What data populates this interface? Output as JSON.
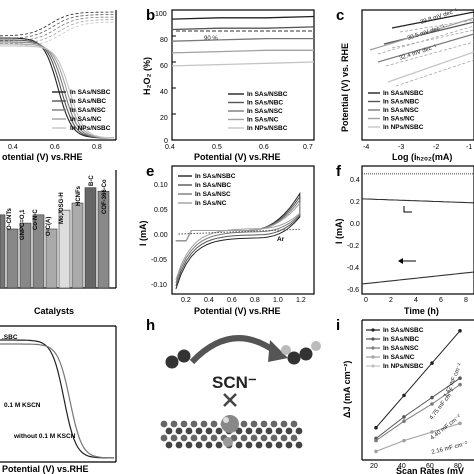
{
  "colors": {
    "dark": "#222222",
    "mid": "#555555",
    "gray": "#7a7a7a",
    "light": "#a0a0a0",
    "pale": "#c4c4c4",
    "ar": "#555555"
  },
  "panel_labels": {
    "b": "b",
    "c": "c",
    "e": "e",
    "f": "f",
    "h": "h",
    "i": "i"
  },
  "legend5": [
    "In SAs/NSBC",
    "In SAs/NBC",
    "In SAs/NSC",
    "In SAs/NC",
    "In NPs/NSBC"
  ],
  "legend4": [
    "In SAs/NSBC",
    "In SAs/NBC",
    "In SAs/NSC",
    "In SAs/NC"
  ],
  "panel_a": {
    "xlabel": "otential (V) vs.RHE",
    "xticks": [
      "0.4",
      "0.6",
      "0.8"
    ]
  },
  "panel_b": {
    "ylabel": "H₂O₂ (%)",
    "xlabel": "Potential (V) vs.RHE",
    "xticks": [
      "0.4",
      "0.5",
      "0.6",
      "0.7"
    ],
    "yticks": [
      "100",
      "80",
      "60",
      "40",
      "20",
      "0"
    ],
    "annotation": "90 %"
  },
  "panel_c": {
    "ylabel": "Potential (V) vs. RHE",
    "xlabel": "Log (iₕ₂ₒ₂(mA)",
    "xticks": [
      "-4",
      "-3",
      "-2",
      "-1"
    ],
    "slopes": [
      "39.8 mV dec⁻¹",
      "30.5 mV dec⁻¹",
      "32.4 mV dec⁻¹"
    ]
  },
  "panel_d": {
    "xlabel": "Catalysts",
    "bar_labels": [
      "O-CNTs",
      "GNPC=O,1",
      "Co-N-C",
      "O-C(A)",
      "Mo,/OSG-H",
      "HCNFs",
      "B-C",
      "COF-366-Co"
    ]
  },
  "panel_e": {
    "ylabel": "I (mA)",
    "xlabel": "Potential (V) vs.RHE",
    "xticks": [
      "0.2",
      "0.4",
      "0.6",
      "0.8",
      "1.0",
      "1.2"
    ],
    "yticks": [
      "0.10",
      "0.05",
      "0.00",
      "-0.05",
      "-0.10"
    ],
    "ar_label": "Ar"
  },
  "panel_f": {
    "ylabel": "I (mA)",
    "xlabel": "Time (h)",
    "xticks": [
      "0",
      "2",
      "4",
      "6",
      "8"
    ],
    "yticks": [
      "0.4",
      "0.2",
      "0.0",
      "-0.2",
      "-0.4",
      "-0.6"
    ]
  },
  "panel_g": {
    "legend": ".SBC",
    "label_kscn": "0.1 M KSCN",
    "label_without": "without 0.1 M KSCN",
    "xlabel": "Potential (V) vs.RHE"
  },
  "panel_h": {
    "label": "SCN⁻"
  },
  "panel_i": {
    "ylabel": "ΔJ (mA cm⁻²)",
    "xlabel": "Scan Rates (mV",
    "xticks": [
      "20",
      "40",
      "60",
      "80"
    ],
    "values": [
      "7.42 mF cm⁻²",
      "4.75 mF cm⁻²",
      "4.40 mF cm⁻²",
      "2.16 mF cm⁻²"
    ]
  },
  "chart_data": [
    {
      "type": "line",
      "panel": "a",
      "xlabel": "Potential (V) vs.RHE",
      "x": [
        0.3,
        0.5,
        0.6,
        0.7,
        0.8,
        0.9
      ],
      "series": [
        {
          "name": "In SAs/NSBC",
          "values": [
            0,
            0.1,
            0.7,
            2.1,
            2.5,
            2.6
          ]
        },
        {
          "name": "In SAs/NBC",
          "values": [
            0,
            0.1,
            0.6,
            1.9,
            2.3,
            2.4
          ]
        },
        {
          "name": "In SAs/NSC",
          "values": [
            0,
            0.1,
            0.5,
            1.8,
            2.2,
            2.3
          ]
        },
        {
          "name": "In SAs/NC",
          "values": [
            0,
            0.1,
            0.4,
            1.6,
            2.1,
            2.2
          ]
        },
        {
          "name": "In NPs/NSBC",
          "values": [
            0,
            0.1,
            0.3,
            1.4,
            2.0,
            2.1
          ]
        }
      ]
    },
    {
      "type": "line",
      "panel": "b",
      "xlabel": "Potential (V) vs.RHE",
      "ylabel": "H2O2 (%)",
      "xlim": [
        0.4,
        0.7
      ],
      "ylim": [
        0,
        100
      ],
      "x": [
        0.4,
        0.5,
        0.6,
        0.7
      ],
      "series": [
        {
          "name": "In SAs/NSBC",
          "values": [
            93,
            94,
            94,
            95
          ]
        },
        {
          "name": "In SAs/NBC",
          "values": [
            85,
            86,
            86,
            87
          ]
        },
        {
          "name": "In SAs/NSC",
          "values": [
            76,
            77,
            78,
            78
          ]
        },
        {
          "name": "In SAs/NC",
          "values": [
            67,
            68,
            69,
            69
          ]
        },
        {
          "name": "In NPs/NSBC",
          "values": [
            57,
            58,
            59,
            60
          ]
        }
      ]
    },
    {
      "type": "line",
      "panel": "c",
      "xlabel": "Log (iH2O2(mA)",
      "ylabel": "Potential (V) vs. RHE",
      "xlim": [
        -4,
        -1
      ]
    },
    {
      "type": "bar",
      "panel": "d",
      "xlabel": "Catalysts",
      "categories": [
        "In",
        "O-CNTs",
        "GNPC=O,1",
        "Co-N-C",
        "O-C(A)",
        "Mo,/OSG-H",
        "HCNFs",
        "B-C",
        "COF-366-Co"
      ],
      "values": [
        62,
        50,
        55,
        62,
        50,
        66,
        72,
        85,
        82
      ]
    },
    {
      "type": "line",
      "panel": "e",
      "xlabel": "Potential (V) vs.RHE",
      "ylabel": "I (mA)",
      "xlim": [
        0.15,
        1.25
      ],
      "ylim": [
        -0.12,
        0.13
      ]
    },
    {
      "type": "line",
      "panel": "f",
      "xlabel": "Time (h)",
      "ylabel": "I (mA)",
      "xlim": [
        0,
        9
      ],
      "ylim": [
        -0.65,
        0.5
      ]
    },
    {
      "type": "line",
      "panel": "i",
      "xlabel": "Scan Rates (mV",
      "ylabel": "ΔJ (mA cm-2)",
      "x": [
        20,
        40,
        60,
        80
      ],
      "series": [
        {
          "name": "In SAs/NSBC",
          "values": [
            0.15,
            0.3,
            0.45,
            0.6
          ]
        },
        {
          "name": "In SAs/NBC",
          "values": [
            0.1,
            0.2,
            0.29,
            0.38
          ]
        },
        {
          "name": "In SAs/NSC",
          "values": [
            0.09,
            0.18,
            0.26,
            0.35
          ]
        },
        {
          "name": "In SAs/NC",
          "values": [
            0.04,
            0.09,
            0.13,
            0.17
          ]
        }
      ]
    }
  ]
}
